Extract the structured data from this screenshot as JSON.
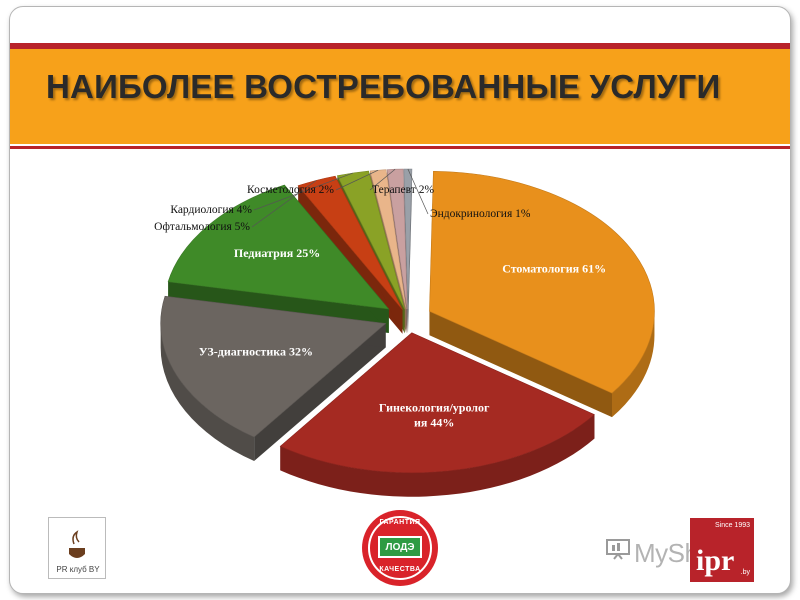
{
  "slide": {
    "title": "НАИБОЛЕЕ ВОСТРЕБОВАННЫЕ УСЛУГИ"
  },
  "chart_data": {
    "type": "pie",
    "style": "3d-exploded",
    "title": "",
    "legend": "none",
    "slices": [
      {
        "label": "Стоматология 61%",
        "value": 61,
        "color": "#e8901c"
      },
      {
        "label": "Гинекология/уролог ия 44%",
        "value": 44,
        "color": "#a52a22"
      },
      {
        "label": "УЗ-диагностика 32%",
        "value": 32,
        "color": "#6b6560"
      },
      {
        "label": "Педиатрия 25%",
        "value": 25,
        "color": "#3f8a28"
      },
      {
        "label": "Офтальмология 5%",
        "value": 5,
        "color": "#c73f14"
      },
      {
        "label": "Кардиология 4%",
        "value": 4,
        "color": "#8aa226"
      },
      {
        "label": "Косметология 2%",
        "value": 2,
        "color": "#e9b58a"
      },
      {
        "label": "Терапевт 2%",
        "value": 2,
        "color": "#c9a0a0"
      },
      {
        "label": "Эндокринология 1%",
        "value": 1,
        "color": "#9aa0a8"
      }
    ]
  },
  "logos": {
    "pr_club": "PR клуб BY",
    "seal_top": "ГАРАНТИЯ",
    "seal_mid": "ЛОДЭ",
    "seal_bottom": "КАЧЕСТВА",
    "watermark": "MyShared",
    "ipr_since": "Since 1993",
    "ipr_name": "ipr",
    "ipr_domain": ".by"
  },
  "colors": {
    "header_orange": "#f7a11a",
    "header_red": "#b8232a"
  }
}
